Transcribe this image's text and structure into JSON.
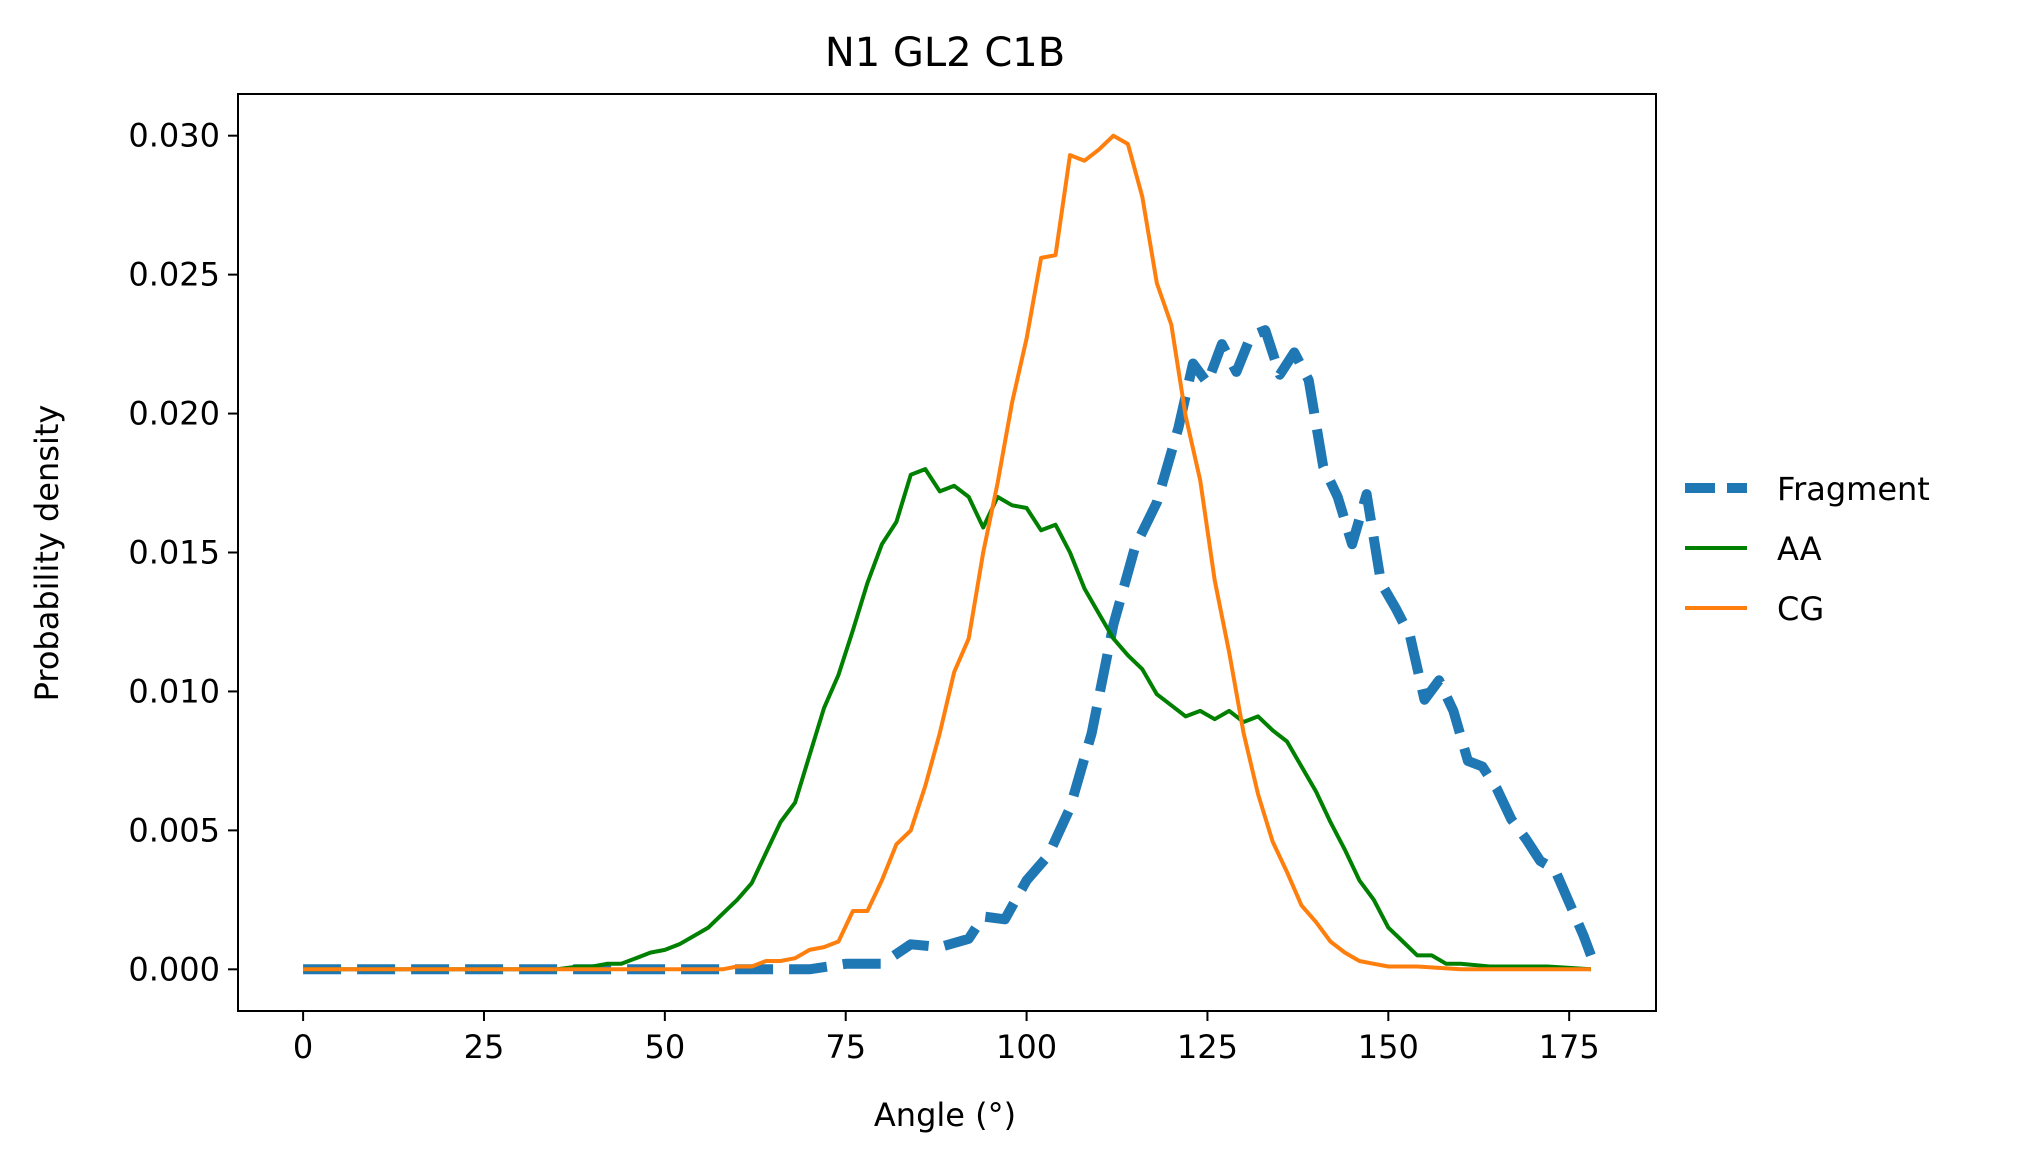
{
  "chart_data": {
    "type": "line",
    "title": "N1 GL2 C1B",
    "xlabel": "Angle (°)",
    "ylabel": "Probability density",
    "xlim": [
      -9,
      187
    ],
    "ylim": [
      -0.0015,
      0.0315
    ],
    "xticks": [
      0,
      25,
      50,
      75,
      100,
      125,
      150,
      175
    ],
    "xtick_labels": [
      "0",
      "25",
      "50",
      "75",
      "100",
      "125",
      "150",
      "175"
    ],
    "yticks": [
      0.0,
      0.005,
      0.01,
      0.015,
      0.02,
      0.025,
      0.03
    ],
    "ytick_labels": [
      "0.000",
      "0.005",
      "0.010",
      "0.015",
      "0.020",
      "0.025",
      "0.030"
    ],
    "grid": false,
    "legend_position": "right-outside",
    "series": [
      {
        "name": "Fragment",
        "color": "#1f77b4",
        "style": "dashed",
        "points": [
          [
            0,
            0
          ],
          [
            10,
            0
          ],
          [
            20,
            0
          ],
          [
            30,
            0
          ],
          [
            40,
            0
          ],
          [
            50,
            0
          ],
          [
            60,
            0
          ],
          [
            65,
            0
          ],
          [
            70,
            0
          ],
          [
            75,
            0.0002
          ],
          [
            80,
            0.0002
          ],
          [
            84,
            0.0009
          ],
          [
            88,
            0.0008
          ],
          [
            92,
            0.0011
          ],
          [
            94,
            0.0019
          ],
          [
            97,
            0.0018
          ],
          [
            100,
            0.0032
          ],
          [
            103,
            0.0041
          ],
          [
            106,
            0.0058
          ],
          [
            109,
            0.0085
          ],
          [
            112,
            0.0124
          ],
          [
            115,
            0.0152
          ],
          [
            118,
            0.0168
          ],
          [
            121,
            0.0195
          ],
          [
            123,
            0.0218
          ],
          [
            125,
            0.0211
          ],
          [
            127,
            0.0225
          ],
          [
            129,
            0.0215
          ],
          [
            131,
            0.0228
          ],
          [
            133,
            0.023
          ],
          [
            135,
            0.0214
          ],
          [
            137,
            0.0222
          ],
          [
            139,
            0.0212
          ],
          [
            141,
            0.0181
          ],
          [
            143,
            0.017
          ],
          [
            145,
            0.0153
          ],
          [
            147,
            0.0171
          ],
          [
            149,
            0.0139
          ],
          [
            151,
            0.013
          ],
          [
            153,
            0.012
          ],
          [
            155,
            0.0097
          ],
          [
            157,
            0.0104
          ],
          [
            159,
            0.0093
          ],
          [
            161,
            0.0075
          ],
          [
            163,
            0.0073
          ],
          [
            165,
            0.0065
          ],
          [
            167,
            0.0054
          ],
          [
            169,
            0.0047
          ],
          [
            171,
            0.0039
          ],
          [
            173,
            0.0036
          ],
          [
            175,
            0.0024
          ],
          [
            177,
            0.0012
          ],
          [
            178,
            0.0005
          ]
        ]
      },
      {
        "name": "AA",
        "color": "#008000",
        "style": "solid",
        "points": [
          [
            0,
            0
          ],
          [
            10,
            0
          ],
          [
            20,
            0
          ],
          [
            30,
            0
          ],
          [
            35,
            0
          ],
          [
            38,
            0.0001
          ],
          [
            40,
            0.0001
          ],
          [
            42,
            0.0002
          ],
          [
            44,
            0.0002
          ],
          [
            46,
            0.0004
          ],
          [
            48,
            0.0006
          ],
          [
            50,
            0.0007
          ],
          [
            52,
            0.0009
          ],
          [
            54,
            0.0012
          ],
          [
            56,
            0.0015
          ],
          [
            58,
            0.002
          ],
          [
            60,
            0.0025
          ],
          [
            62,
            0.0031
          ],
          [
            64,
            0.0042
          ],
          [
            66,
            0.0053
          ],
          [
            68,
            0.006
          ],
          [
            70,
            0.0077
          ],
          [
            72,
            0.0094
          ],
          [
            74,
            0.0106
          ],
          [
            76,
            0.0122
          ],
          [
            78,
            0.0139
          ],
          [
            80,
            0.0153
          ],
          [
            82,
            0.0161
          ],
          [
            84,
            0.0178
          ],
          [
            86,
            0.018
          ],
          [
            88,
            0.0172
          ],
          [
            90,
            0.0174
          ],
          [
            92,
            0.017
          ],
          [
            94,
            0.0159
          ],
          [
            96,
            0.017
          ],
          [
            98,
            0.0167
          ],
          [
            100,
            0.0166
          ],
          [
            102,
            0.0158
          ],
          [
            104,
            0.016
          ],
          [
            106,
            0.015
          ],
          [
            108,
            0.0137
          ],
          [
            110,
            0.0128
          ],
          [
            112,
            0.0119
          ],
          [
            114,
            0.0113
          ],
          [
            116,
            0.0108
          ],
          [
            118,
            0.0099
          ],
          [
            120,
            0.0095
          ],
          [
            122,
            0.0091
          ],
          [
            124,
            0.0093
          ],
          [
            126,
            0.009
          ],
          [
            128,
            0.0093
          ],
          [
            130,
            0.0089
          ],
          [
            132,
            0.0091
          ],
          [
            134,
            0.0086
          ],
          [
            136,
            0.0082
          ],
          [
            138,
            0.0073
          ],
          [
            140,
            0.0064
          ],
          [
            142,
            0.0053
          ],
          [
            144,
            0.0043
          ],
          [
            146,
            0.0032
          ],
          [
            148,
            0.0025
          ],
          [
            150,
            0.0015
          ],
          [
            152,
            0.001
          ],
          [
            154,
            0.0005
          ],
          [
            156,
            0.0005
          ],
          [
            158,
            0.0002
          ],
          [
            160,
            0.0002
          ],
          [
            164,
            0.0001
          ],
          [
            168,
            0.0001
          ],
          [
            172,
            0.0001
          ],
          [
            178,
            0
          ]
        ]
      },
      {
        "name": "CG",
        "color": "#ff7f0e",
        "style": "solid",
        "points": [
          [
            0,
            0
          ],
          [
            20,
            0
          ],
          [
            40,
            0
          ],
          [
            50,
            0
          ],
          [
            55,
            0
          ],
          [
            58,
            0
          ],
          [
            60,
            0.0001
          ],
          [
            62,
            0.0001
          ],
          [
            64,
            0.0003
          ],
          [
            66,
            0.0003
          ],
          [
            68,
            0.0004
          ],
          [
            70,
            0.0007
          ],
          [
            72,
            0.0008
          ],
          [
            74,
            0.001
          ],
          [
            76,
            0.0021
          ],
          [
            78,
            0.0021
          ],
          [
            80,
            0.0032
          ],
          [
            82,
            0.0045
          ],
          [
            84,
            0.005
          ],
          [
            86,
            0.0066
          ],
          [
            88,
            0.0085
          ],
          [
            90,
            0.0107
          ],
          [
            92,
            0.0119
          ],
          [
            94,
            0.015
          ],
          [
            96,
            0.0175
          ],
          [
            98,
            0.0204
          ],
          [
            100,
            0.0227
          ],
          [
            102,
            0.0256
          ],
          [
            104,
            0.0257
          ],
          [
            106,
            0.0293
          ],
          [
            108,
            0.0291
          ],
          [
            110,
            0.0295
          ],
          [
            112,
            0.03
          ],
          [
            114,
            0.0297
          ],
          [
            116,
            0.0278
          ],
          [
            118,
            0.0247
          ],
          [
            120,
            0.0232
          ],
          [
            122,
            0.0199
          ],
          [
            124,
            0.0176
          ],
          [
            126,
            0.014
          ],
          [
            128,
            0.0114
          ],
          [
            130,
            0.0085
          ],
          [
            132,
            0.0063
          ],
          [
            134,
            0.0046
          ],
          [
            136,
            0.0035
          ],
          [
            138,
            0.0023
          ],
          [
            140,
            0.0017
          ],
          [
            142,
            0.001
          ],
          [
            144,
            0.0006
          ],
          [
            146,
            0.0003
          ],
          [
            148,
            0.0002
          ],
          [
            150,
            0.0001
          ],
          [
            154,
            0.0001
          ],
          [
            160,
            0
          ],
          [
            170,
            0
          ],
          [
            178,
            0
          ]
        ]
      }
    ]
  }
}
